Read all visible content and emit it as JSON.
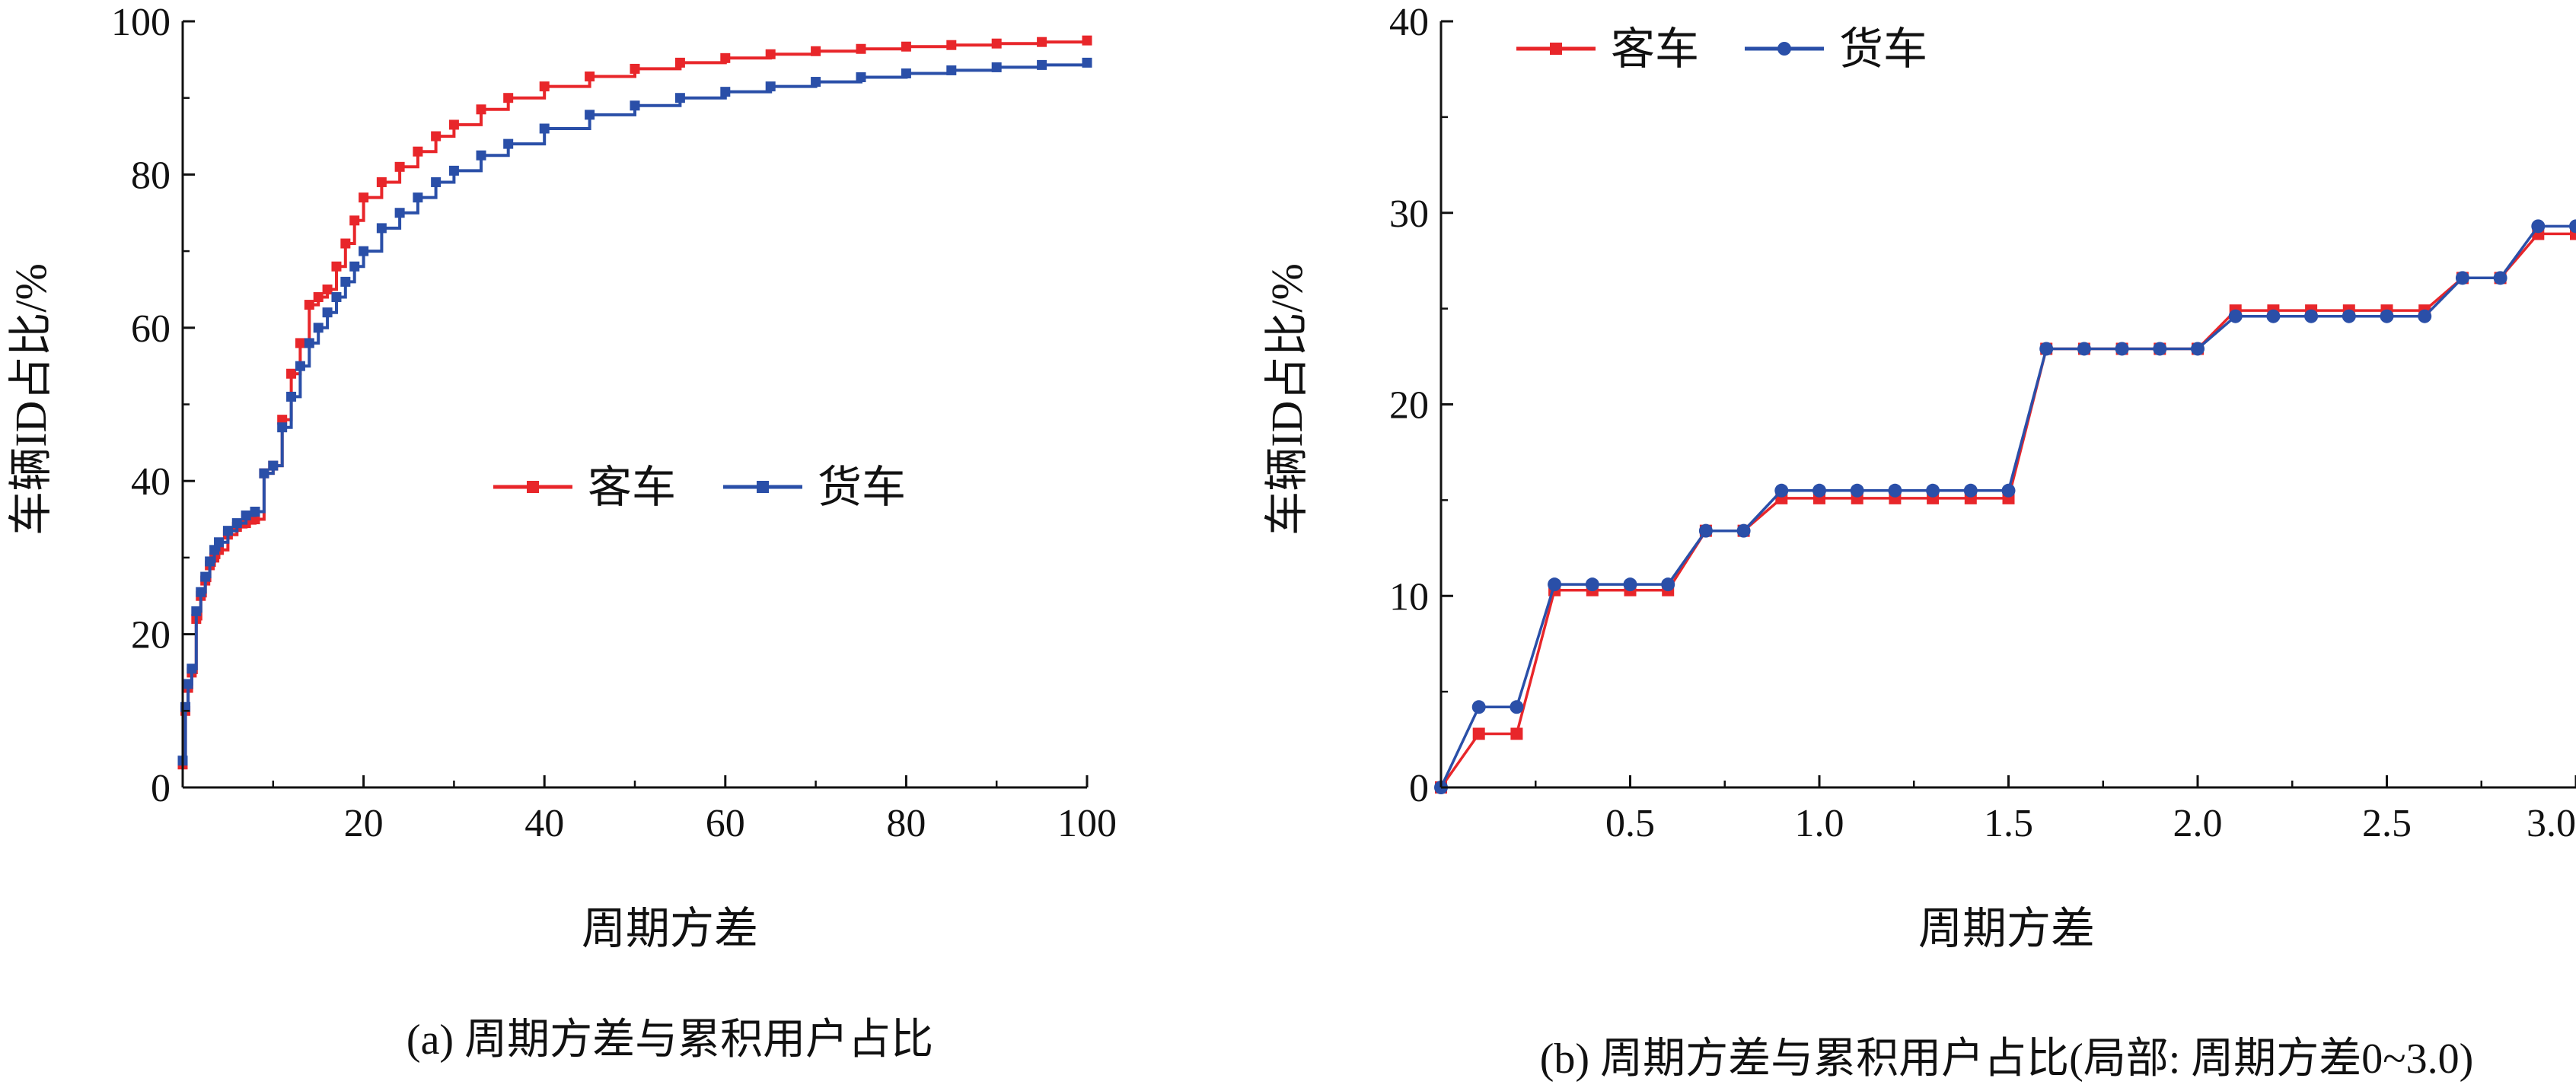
{
  "colors": {
    "passenger": "#e8262a",
    "truck": "#2a4fa8",
    "axis": "#111111"
  },
  "chart_data": [
    {
      "type": "line",
      "caption": "(a) 周期方差与累积用户占比",
      "xlabel": "周期方差",
      "ylabel": "车辆ID占比/%",
      "xlim": [
        0,
        100
      ],
      "ylim": [
        0,
        100
      ],
      "xticks": [
        "20",
        "40",
        "60",
        "80",
        "100"
      ],
      "yticks": [
        "0",
        "20",
        "40",
        "60",
        "80",
        "100"
      ],
      "grid": false,
      "legend_position": "center",
      "series": [
        {
          "name": "客车",
          "color": "#e8262a",
          "marker": "square",
          "x": [
            0,
            0.3,
            0.6,
            1,
            1.5,
            2,
            2.5,
            3,
            3.5,
            4,
            5,
            6,
            7,
            8,
            9,
            10,
            11,
            12,
            13,
            14,
            15,
            16,
            17,
            18,
            19,
            20,
            22,
            24,
            26,
            28,
            30,
            33,
            36,
            40,
            45,
            50,
            55,
            60,
            65,
            70,
            75,
            80,
            85,
            90,
            95,
            100
          ],
          "y": [
            3,
            10,
            13,
            15,
            22,
            25,
            27,
            29,
            30,
            31,
            33,
            34,
            34.5,
            35,
            41,
            42,
            48,
            54,
            58,
            63,
            64,
            65,
            68,
            71,
            74,
            77,
            79,
            81,
            83,
            85,
            86.5,
            88.5,
            90,
            91.5,
            92.8,
            93.8,
            94.6,
            95.2,
            95.7,
            96.1,
            96.4,
            96.7,
            96.9,
            97.1,
            97.3,
            97.5
          ]
        },
        {
          "name": "货车",
          "color": "#2a4fa8",
          "marker": "square",
          "x": [
            0,
            0.3,
            0.6,
            1,
            1.5,
            2,
            2.5,
            3,
            3.5,
            4,
            5,
            6,
            7,
            8,
            9,
            10,
            11,
            12,
            13,
            14,
            15,
            16,
            17,
            18,
            19,
            20,
            22,
            24,
            26,
            28,
            30,
            33,
            36,
            40,
            45,
            50,
            55,
            60,
            65,
            70,
            75,
            80,
            85,
            90,
            95,
            100
          ],
          "y": [
            3.5,
            10.5,
            13.5,
            15.5,
            23,
            25.5,
            27.5,
            29.5,
            31,
            32,
            33.5,
            34.5,
            35.5,
            36,
            41,
            42,
            47,
            51,
            55,
            58,
            60,
            62,
            64,
            66,
            68,
            70,
            73,
            75,
            77,
            79,
            80.5,
            82.5,
            84,
            86,
            87.8,
            89,
            90,
            90.8,
            91.5,
            92.1,
            92.7,
            93.2,
            93.6,
            94,
            94.3,
            94.6
          ]
        }
      ]
    },
    {
      "type": "line",
      "caption": "(b) 周期方差与累积用户占比(局部: 周期方差0~3.0)",
      "xlabel": "周期方差",
      "ylabel": "车辆ID占比/%",
      "xlim": [
        0,
        3.0
      ],
      "ylim": [
        0,
        40
      ],
      "xticks": [
        "0.5",
        "1.0",
        "1.5",
        "2.0",
        "2.5",
        "3.0"
      ],
      "yticks": [
        "0",
        "10",
        "20",
        "30",
        "40"
      ],
      "grid": false,
      "legend_position": "top-left",
      "series": [
        {
          "name": "客车",
          "color": "#e8262a",
          "marker": "square",
          "x": [
            0,
            0.1,
            0.2,
            0.3,
            0.4,
            0.5,
            0.6,
            0.7,
            0.8,
            0.9,
            1.0,
            1.1,
            1.2,
            1.3,
            1.4,
            1.5,
            1.6,
            1.7,
            1.8,
            1.9,
            2.0,
            2.1,
            2.2,
            2.3,
            2.4,
            2.5,
            2.6,
            2.7,
            2.8,
            2.9,
            3.0
          ],
          "y": [
            0,
            2.8,
            2.8,
            10.3,
            10.3,
            10.3,
            10.3,
            13.4,
            13.4,
            15.1,
            15.1,
            15.1,
            15.1,
            15.1,
            15.1,
            15.1,
            22.9,
            22.9,
            22.9,
            22.9,
            22.9,
            24.9,
            24.9,
            24.9,
            24.9,
            24.9,
            24.9,
            26.6,
            26.6,
            28.9,
            28.9
          ]
        },
        {
          "name": "货车",
          "color": "#2a4fa8",
          "marker": "circle",
          "x": [
            0,
            0.1,
            0.2,
            0.3,
            0.4,
            0.5,
            0.6,
            0.7,
            0.8,
            0.9,
            1.0,
            1.1,
            1.2,
            1.3,
            1.4,
            1.5,
            1.6,
            1.7,
            1.8,
            1.9,
            2.0,
            2.1,
            2.2,
            2.3,
            2.4,
            2.5,
            2.6,
            2.7,
            2.8,
            2.9,
            3.0
          ],
          "y": [
            0,
            4.2,
            4.2,
            10.6,
            10.6,
            10.6,
            10.6,
            13.4,
            13.4,
            15.5,
            15.5,
            15.5,
            15.5,
            15.5,
            15.5,
            15.5,
            22.9,
            22.9,
            22.9,
            22.9,
            22.9,
            24.6,
            24.6,
            24.6,
            24.6,
            24.6,
            24.6,
            26.6,
            26.6,
            29.3,
            29.3
          ]
        }
      ]
    }
  ]
}
